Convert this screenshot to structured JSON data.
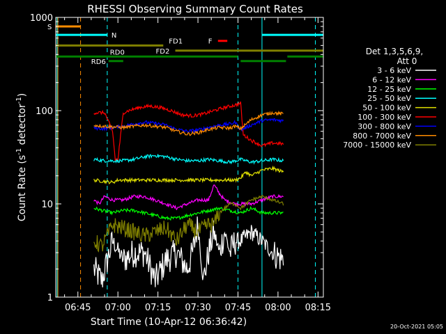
{
  "chart_data": {
    "type": "line",
    "title": "RHESSI Observing Summary Count Rates",
    "xlabel": "Start Time (10-Apr-12 06:36:42)",
    "ylabel": "Count Rate (s^-1 detector^-1)",
    "ylabel_parts": {
      "main": "Count Rate (s",
      "sup1": "-1",
      "mid": " detector",
      "sup2": "-1",
      "end": ")"
    },
    "y_scale": "log",
    "ylim": [
      1,
      1000
    ],
    "xlim_minutes": [
      36.7,
      137.0
    ],
    "x_ticks": [
      {
        "label": "06:45",
        "minute": 45
      },
      {
        "label": "07:00",
        "minute": 60
      },
      {
        "label": "07:15",
        "minute": 75
      },
      {
        "label": "07:30",
        "minute": 90
      },
      {
        "label": "07:45",
        "minute": 105
      },
      {
        "label": "08:00",
        "minute": 120
      },
      {
        "label": "08:15",
        "minute": 135
      }
    ],
    "y_ticks": [
      {
        "label": "1",
        "value": 1
      },
      {
        "label": "10",
        "value": 10
      },
      {
        "label": "100",
        "value": 100
      },
      {
        "label": "1000",
        "value": 1000
      }
    ],
    "legend_header": [
      "Det 1,3,5,6,9,",
      "Att 0"
    ],
    "legend_placement": "right",
    "series": [
      {
        "name": "3 - 6 keV",
        "color": "#ffffff",
        "keypoints": [
          [
            51,
            2
          ],
          [
            54,
            1.5
          ],
          [
            58,
            4
          ],
          [
            62,
            2.5
          ],
          [
            66,
            3
          ],
          [
            70,
            3
          ],
          [
            74,
            1.5
          ],
          [
            78,
            2.5
          ],
          [
            82,
            3
          ],
          [
            86,
            2
          ],
          [
            88,
            3
          ],
          [
            90,
            6
          ],
          [
            92,
            1.5
          ],
          [
            94,
            3
          ],
          [
            96,
            5
          ],
          [
            98,
            3
          ],
          [
            100,
            5
          ],
          [
            102,
            3
          ],
          [
            104,
            4
          ],
          [
            106,
            4
          ],
          [
            110,
            5
          ],
          [
            114,
            4
          ],
          [
            118,
            3
          ],
          [
            122,
            2.5
          ]
        ]
      },
      {
        "name": "6 - 12 keV",
        "color": "#ff00ff",
        "keypoints": [
          [
            51,
            11
          ],
          [
            53,
            10
          ],
          [
            55,
            12
          ],
          [
            58,
            11
          ],
          [
            62,
            11
          ],
          [
            66,
            12
          ],
          [
            70,
            12
          ],
          [
            74,
            11
          ],
          [
            78,
            10
          ],
          [
            82,
            9
          ],
          [
            86,
            10
          ],
          [
            90,
            11
          ],
          [
            94,
            11
          ],
          [
            96,
            16
          ],
          [
            98,
            13
          ],
          [
            100,
            11
          ],
          [
            104,
            10
          ],
          [
            106,
            10
          ],
          [
            110,
            10
          ],
          [
            114,
            11
          ],
          [
            118,
            12
          ],
          [
            122,
            12
          ]
        ]
      },
      {
        "name": "12 - 25 keV",
        "color": "#00ff00",
        "keypoints": [
          [
            51,
            9
          ],
          [
            54,
            8.5
          ],
          [
            58,
            8
          ],
          [
            62,
            8.5
          ],
          [
            66,
            8.5
          ],
          [
            70,
            8
          ],
          [
            74,
            7.5
          ],
          [
            78,
            7
          ],
          [
            82,
            7
          ],
          [
            86,
            7.5
          ],
          [
            90,
            8
          ],
          [
            94,
            8.5
          ],
          [
            98,
            9
          ],
          [
            102,
            8.5
          ],
          [
            106,
            8
          ],
          [
            110,
            9
          ],
          [
            114,
            8
          ],
          [
            118,
            8
          ],
          [
            122,
            8
          ]
        ]
      },
      {
        "name": "25 - 50 keV",
        "color": "#00ffff",
        "keypoints": [
          [
            51,
            30
          ],
          [
            55,
            29
          ],
          [
            58,
            29
          ],
          [
            62,
            29
          ],
          [
            66,
            30
          ],
          [
            70,
            32
          ],
          [
            74,
            33
          ],
          [
            78,
            32
          ],
          [
            82,
            30
          ],
          [
            86,
            29
          ],
          [
            90,
            29
          ],
          [
            94,
            30
          ],
          [
            98,
            29
          ],
          [
            102,
            28
          ],
          [
            106,
            30
          ],
          [
            110,
            28
          ],
          [
            114,
            29
          ],
          [
            118,
            30
          ],
          [
            122,
            29
          ]
        ]
      },
      {
        "name": "50 - 100 keV",
        "color": "#e0e000",
        "keypoints": [
          [
            51,
            18
          ],
          [
            58,
            17
          ],
          [
            60,
            18
          ],
          [
            104,
            18
          ],
          [
            106,
            19
          ],
          [
            108,
            22
          ],
          [
            110,
            20
          ],
          [
            114,
            23
          ],
          [
            118,
            24
          ],
          [
            122,
            22
          ]
        ]
      },
      {
        "name": "100 - 300 keV",
        "color": "#ff0000",
        "keypoints": [
          [
            51,
            95
          ],
          [
            55,
            95
          ],
          [
            58,
            60
          ],
          [
            59,
            30
          ],
          [
            60,
            30
          ],
          [
            62,
            95
          ],
          [
            64,
            100
          ],
          [
            68,
            108
          ],
          [
            72,
            112
          ],
          [
            76,
            108
          ],
          [
            80,
            100
          ],
          [
            84,
            90
          ],
          [
            88,
            88
          ],
          [
            92,
            92
          ],
          [
            96,
            100
          ],
          [
            100,
            108
          ],
          [
            104,
            115
          ],
          [
            106,
            120
          ],
          [
            107,
            55
          ],
          [
            110,
            48
          ],
          [
            114,
            42
          ],
          [
            118,
            45
          ],
          [
            122,
            44
          ]
        ]
      },
      {
        "name": "300 - 800 keV",
        "color": "#0000ff",
        "keypoints": [
          [
            51,
            65
          ],
          [
            55,
            64
          ],
          [
            58,
            66
          ],
          [
            62,
            68
          ],
          [
            66,
            72
          ],
          [
            70,
            75
          ],
          [
            74,
            73
          ],
          [
            78,
            70
          ],
          [
            82,
            63
          ],
          [
            86,
            60
          ],
          [
            90,
            62
          ],
          [
            94,
            66
          ],
          [
            98,
            70
          ],
          [
            102,
            72
          ],
          [
            104,
            75
          ],
          [
            106,
            62
          ],
          [
            110,
            70
          ],
          [
            114,
            78
          ],
          [
            118,
            80
          ],
          [
            122,
            78
          ]
        ]
      },
      {
        "name": "800 - 7000 keV",
        "color": "#ff8c00",
        "keypoints": [
          [
            51,
            70
          ],
          [
            55,
            68
          ],
          [
            58,
            67
          ],
          [
            62,
            66
          ],
          [
            66,
            68
          ],
          [
            70,
            70
          ],
          [
            74,
            68
          ],
          [
            78,
            66
          ],
          [
            82,
            60
          ],
          [
            86,
            56
          ],
          [
            90,
            58
          ],
          [
            94,
            63
          ],
          [
            98,
            66
          ],
          [
            102,
            65
          ],
          [
            104,
            68
          ],
          [
            106,
            64
          ],
          [
            110,
            80
          ],
          [
            114,
            90
          ],
          [
            118,
            95
          ],
          [
            122,
            92
          ]
        ]
      },
      {
        "name": "7000 - 15000 keV",
        "color": "#808000",
        "keypoints": [
          [
            51,
            4
          ],
          [
            54,
            3.5
          ],
          [
            58,
            6
          ],
          [
            62,
            5.5
          ],
          [
            66,
            5
          ],
          [
            70,
            4.5
          ],
          [
            74,
            5
          ],
          [
            78,
            5.5
          ],
          [
            82,
            4
          ],
          [
            86,
            6
          ],
          [
            90,
            5
          ],
          [
            94,
            6
          ],
          [
            96,
            6
          ],
          [
            98,
            8
          ],
          [
            100,
            9
          ],
          [
            102,
            10
          ],
          [
            104,
            10
          ],
          [
            106,
            9
          ],
          [
            110,
            11
          ],
          [
            114,
            12
          ],
          [
            118,
            11
          ],
          [
            122,
            10
          ]
        ]
      }
    ],
    "state_bars": [
      {
        "label": "S",
        "color": "#ff8c00",
        "segments": [
          [
            36.7,
            46
          ]
        ],
        "value": 800
      },
      {
        "label": "N",
        "color": "#00ffff",
        "segments": [
          [
            36.7,
            56
          ],
          [
            114,
            137
          ]
        ],
        "value": 650
      },
      {
        "label": "F",
        "color": "#ff0000",
        "segments": [
          [
            97.5,
            101
          ]
        ],
        "value": 560
      },
      {
        "label": "FD1",
        "color": "#808000",
        "segments": [
          [
            36.7,
            77
          ]
        ],
        "value": 500
      },
      {
        "label": "FD2",
        "color": "#808000",
        "segments": [
          [
            81.5,
            137
          ]
        ],
        "value": 440
      },
      {
        "label": "RD0",
        "color": "#008000",
        "segments": [
          [
            36.7,
            105
          ],
          [
            123.5,
            137
          ]
        ],
        "value": 380
      },
      {
        "label": "RD6",
        "color": "#008000",
        "segments": [
          [
            56.5,
            62
          ],
          [
            106,
            123
          ]
        ],
        "value": 340
      }
    ],
    "vertical_markers": [
      {
        "minute": 37.5,
        "color": "#ff8c00",
        "style": "solid"
      },
      {
        "minute": 46.0,
        "color": "#ff8c00",
        "style": "dashed"
      },
      {
        "minute": 37.2,
        "color": "#00ffff",
        "style": "solid"
      },
      {
        "minute": 56.0,
        "color": "#00ffff",
        "style": "dashed"
      },
      {
        "minute": 105.0,
        "color": "#00ffff",
        "style": "dashed"
      },
      {
        "minute": 114.0,
        "color": "#00ffff",
        "style": "solid"
      },
      {
        "minute": 134.0,
        "color": "#00ffff",
        "style": "dashed"
      }
    ]
  },
  "footer_timestamp": "20-Oct-2021 05:05"
}
